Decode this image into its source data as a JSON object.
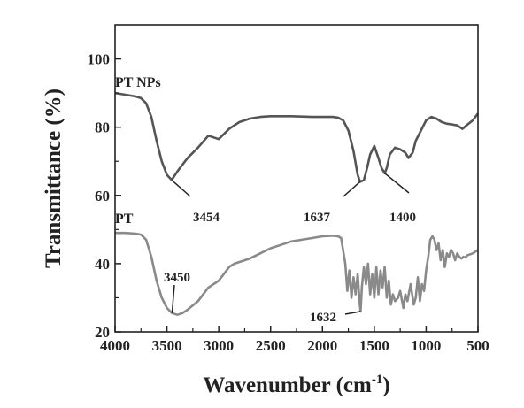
{
  "chart_data": {
    "type": "line",
    "xlabel": "Wavenumber (cm",
    "xlabel_sup": "-1",
    "xlabel_close": ")",
    "ylabel": "Transmittance (%)",
    "xlim": [
      4000,
      500
    ],
    "ylim": [
      20,
      110
    ],
    "x_ticks": [
      4000,
      3500,
      3000,
      2500,
      2000,
      1500,
      1000,
      500
    ],
    "y_ticks": [
      20,
      40,
      60,
      80,
      100
    ],
    "grid": false,
    "series": [
      {
        "name": "PT NPs",
        "color": "#555555",
        "x": [
          4000,
          3900,
          3800,
          3750,
          3700,
          3650,
          3600,
          3550,
          3500,
          3454,
          3400,
          3350,
          3300,
          3200,
          3100,
          3000,
          2950,
          2900,
          2850,
          2800,
          2700,
          2600,
          2500,
          2400,
          2300,
          2200,
          2100,
          2000,
          1900,
          1850,
          1800,
          1750,
          1700,
          1660,
          1637,
          1600,
          1570,
          1540,
          1500,
          1460,
          1430,
          1400,
          1380,
          1350,
          1300,
          1250,
          1200,
          1170,
          1130,
          1100,
          1050,
          1000,
          950,
          900,
          850,
          800,
          750,
          700,
          650,
          600,
          550,
          500
        ],
        "y": [
          90,
          89.5,
          89,
          88.5,
          87,
          83,
          76,
          70,
          66,
          64.5,
          67,
          69,
          71,
          74,
          77.5,
          76.5,
          78,
          79.5,
          80.5,
          81.5,
          82.5,
          83,
          83.2,
          83.2,
          83.2,
          83.1,
          83,
          83,
          83,
          82.8,
          82,
          79,
          73,
          66,
          64,
          64.5,
          68,
          72,
          74.5,
          71,
          68,
          66.5,
          68,
          72,
          74,
          73.5,
          72.5,
          71,
          72.5,
          76,
          79,
          82,
          83,
          82.5,
          81.5,
          81,
          80.8,
          80.5,
          79.5,
          80.8,
          82,
          84
        ]
      },
      {
        "name": "PT",
        "color": "#8a8a8a",
        "x": [
          4000,
          3900,
          3800,
          3750,
          3700,
          3650,
          3600,
          3550,
          3500,
          3450,
          3400,
          3350,
          3300,
          3200,
          3100,
          3000,
          2950,
          2900,
          2850,
          2800,
          2700,
          2600,
          2500,
          2400,
          2300,
          2200,
          2100,
          2000,
          1900,
          1850,
          1820,
          1780,
          1760,
          1740,
          1720,
          1700,
          1680,
          1660,
          1640,
          1632,
          1620,
          1600,
          1580,
          1560,
          1540,
          1520,
          1500,
          1480,
          1460,
          1440,
          1420,
          1400,
          1380,
          1360,
          1340,
          1320,
          1300,
          1270,
          1250,
          1220,
          1200,
          1180,
          1150,
          1120,
          1100,
          1080,
          1060,
          1040,
          1020,
          1000,
          980,
          960,
          940,
          920,
          900,
          880,
          860,
          840,
          820,
          800,
          780,
          760,
          740,
          720,
          700,
          680,
          660,
          640,
          620,
          600,
          550,
          500
        ],
        "y": [
          49,
          49,
          48.8,
          48.5,
          47,
          42,
          35,
          30,
          27,
          25.5,
          25,
          25.5,
          26.5,
          29,
          33,
          35,
          37,
          39,
          40,
          40.5,
          41.5,
          43,
          44.5,
          45.5,
          46.5,
          47,
          47.5,
          48,
          48.2,
          48,
          47.5,
          40,
          32,
          38,
          30,
          36,
          31,
          37,
          28,
          26,
          33,
          39,
          34,
          40,
          31,
          37,
          30,
          39,
          31,
          38,
          33,
          39,
          30,
          35,
          28,
          31,
          29,
          30,
          32,
          27,
          31,
          29,
          34,
          28,
          30,
          36,
          29,
          34,
          32,
          38,
          42,
          47,
          48,
          47,
          44,
          46,
          41,
          44,
          39,
          43,
          42,
          44,
          43,
          41,
          43,
          42,
          41.5,
          42,
          41.8,
          42.5,
          43,
          44
        ]
      }
    ],
    "series_labels": [
      "PT NPs",
      "PT"
    ],
    "annotations": [
      {
        "text": "3454",
        "x": 3454,
        "y": 64.5
      },
      {
        "text": "1637",
        "x": 1637,
        "y": 64
      },
      {
        "text": "1400",
        "x": 1400,
        "y": 66.5
      },
      {
        "text": "3450",
        "x": 3450,
        "y": 25.5
      },
      {
        "text": "1632",
        "x": 1632,
        "y": 26
      }
    ]
  }
}
